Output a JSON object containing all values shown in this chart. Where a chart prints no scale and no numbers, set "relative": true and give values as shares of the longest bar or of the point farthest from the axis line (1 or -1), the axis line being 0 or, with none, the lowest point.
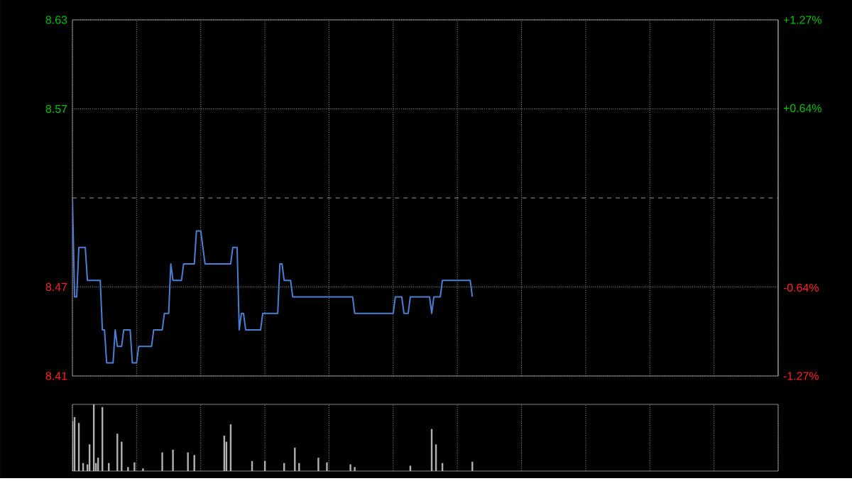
{
  "chart_data": [
    {
      "type": "line",
      "color": "#4a7fd4",
      "ylim": [
        8.412,
        8.628
      ],
      "y2lim": [
        -1.27,
        1.27
      ],
      "grid": true,
      "tick_labels": "y",
      "marker": "none",
      "categories": [
        null,
        null,
        null,
        null,
        null,
        null,
        null,
        null,
        null,
        null,
        null,
        null,
        null,
        null,
        null,
        null,
        null,
        null,
        null,
        null,
        null,
        null,
        null,
        null,
        null,
        null,
        null,
        null,
        null,
        null,
        null,
        null,
        null,
        null,
        null,
        null,
        null,
        null,
        null,
        null,
        null,
        null,
        null,
        null,
        null,
        null,
        null,
        null,
        null,
        null,
        null,
        null,
        null,
        null,
        null,
        null,
        null,
        null,
        null,
        null,
        null,
        null,
        null,
        null,
        null,
        null,
        null,
        null,
        null,
        null,
        null,
        null,
        null,
        null,
        null,
        null,
        null,
        null,
        null,
        null,
        null,
        null,
        null,
        null,
        null,
        null,
        null,
        null,
        null,
        null,
        null,
        null,
        null,
        null,
        null,
        null,
        null,
        null,
        null,
        null,
        null,
        null,
        null,
        null,
        null,
        null,
        null,
        null,
        null,
        null,
        null,
        null,
        null,
        null,
        null,
        null,
        null,
        null,
        null,
        null,
        null,
        null,
        null,
        null,
        null,
        null,
        null,
        null,
        null,
        null,
        null,
        null,
        null,
        null,
        null,
        null,
        null,
        null,
        null,
        null,
        null,
        null,
        null,
        null,
        null,
        null,
        null,
        null,
        null,
        null,
        null,
        null,
        null,
        null,
        null,
        null,
        null,
        null,
        null,
        null,
        null,
        null,
        null,
        null,
        null,
        null,
        null,
        null,
        null,
        null,
        null,
        null,
        null,
        null,
        null,
        null,
        null,
        null,
        null,
        null,
        null,
        null,
        null,
        null,
        null,
        null,
        null,
        null,
        null,
        null,
        null,
        null,
        null,
        null,
        null,
        null,
        null,
        null,
        null,
        null,
        null,
        null,
        null,
        null,
        null,
        null,
        null,
        null,
        null,
        null,
        null,
        null,
        null,
        null,
        null,
        null,
        null,
        null,
        null,
        null,
        null,
        null,
        null,
        null,
        null,
        null,
        null,
        null,
        null,
        null,
        null,
        null,
        null,
        null,
        null,
        null,
        null,
        null,
        null,
        null,
        null,
        null,
        null,
        null,
        null,
        null,
        null,
        null,
        null,
        null,
        null,
        null,
        null,
        null,
        null,
        null,
        null,
        null,
        null,
        null,
        null,
        null,
        null,
        null,
        null,
        null,
        null,
        null,
        null,
        null,
        null,
        null,
        null,
        null,
        null,
        null,
        null,
        null,
        null,
        null,
        null,
        null,
        null,
        null,
        null,
        null,
        null,
        null,
        null,
        null,
        null,
        null,
        null,
        null,
        null,
        null,
        null,
        null,
        null,
        null,
        null,
        null,
        null,
        null,
        null,
        null,
        null,
        null,
        null,
        null,
        null,
        null,
        null,
        null,
        null,
        null,
        null,
        null,
        null,
        null,
        null,
        null,
        null,
        null,
        null,
        null,
        null,
        null,
        null,
        null,
        null
      ],
      "values": [
        8.52,
        8.46,
        8.46,
        8.49,
        8.49,
        8.49,
        8.49,
        8.47,
        8.47,
        8.47,
        8.47,
        8.47,
        8.47,
        8.47,
        8.44,
        8.44,
        8.42,
        8.42,
        8.42,
        8.42,
        8.44,
        8.43,
        8.43,
        8.43,
        8.44,
        8.44,
        8.44,
        8.44,
        8.42,
        8.42,
        8.42,
        8.43,
        8.43,
        8.43,
        8.43,
        8.43,
        8.43,
        8.43,
        8.44,
        8.44,
        8.44,
        8.44,
        8.44,
        8.45,
        8.45,
        8.45,
        8.48,
        8.47,
        8.47,
        8.47,
        8.47,
        8.47,
        8.48,
        8.48,
        8.48,
        8.48,
        8.48,
        8.48,
        8.5,
        8.5,
        8.5,
        8.49,
        8.48,
        8.48,
        8.48,
        8.48,
        8.48,
        8.48,
        8.48,
        8.48,
        8.48,
        8.48,
        8.48,
        8.48,
        8.48,
        8.49,
        8.49,
        8.49,
        8.44,
        8.45,
        8.45,
        8.44,
        8.44,
        8.44,
        8.44,
        8.44,
        8.44,
        8.44,
        8.44,
        8.45,
        8.45,
        8.45,
        8.45,
        8.45,
        8.45,
        8.45,
        8.45,
        8.48,
        8.48,
        8.47,
        8.47,
        8.47,
        8.47,
        8.46,
        8.46,
        8.46,
        8.46,
        8.46,
        8.46,
        8.46,
        8.46,
        8.46,
        8.46,
        8.46,
        8.46,
        8.46,
        8.46,
        8.46,
        8.46,
        8.46,
        8.46,
        8.46,
        8.46,
        8.46,
        8.46,
        8.46,
        8.46,
        8.46,
        8.46,
        8.46,
        8.46,
        8.46,
        8.45,
        8.45,
        8.45,
        8.45,
        8.45,
        8.45,
        8.45,
        8.45,
        8.45,
        8.45,
        8.45,
        8.45,
        8.45,
        8.45,
        8.45,
        8.45,
        8.45,
        8.45,
        8.45,
        8.46,
        8.46,
        8.46,
        8.46,
        8.45,
        8.45,
        8.45,
        8.46,
        8.46,
        8.46,
        8.46,
        8.46,
        8.46,
        8.46,
        8.46,
        8.46,
        8.46,
        8.45,
        8.46,
        8.46,
        8.46,
        8.46,
        8.47,
        8.47,
        8.47,
        8.47,
        8.47,
        8.47,
        8.47,
        8.47,
        8.47,
        8.47,
        8.47,
        8.47,
        8.47,
        8.47,
        8.46,
        null,
        null,
        null,
        null,
        null,
        null,
        null,
        null,
        null,
        null,
        null,
        null,
        null,
        null,
        null,
        null,
        null,
        null,
        null,
        null,
        null,
        null,
        null,
        null,
        null,
        null,
        null,
        null,
        null,
        null,
        null,
        null,
        null,
        null,
        null,
        null,
        null,
        null,
        null,
        null,
        null,
        null,
        null,
        null,
        null,
        null,
        null,
        null,
        null,
        null,
        null,
        null,
        null,
        null,
        null,
        null,
        null,
        null,
        null,
        null,
        null,
        null,
        null,
        null,
        null,
        null,
        null,
        null,
        null,
        null,
        null,
        null,
        null,
        null,
        null,
        null,
        null,
        null,
        null,
        null,
        null,
        null,
        null,
        null,
        null,
        null,
        null,
        null,
        null,
        null,
        null,
        null,
        null,
        null,
        null,
        null,
        null,
        null,
        null,
        null,
        null,
        null,
        null,
        null,
        null,
        null,
        null,
        null,
        null,
        null,
        null,
        null,
        null,
        null,
        null,
        null,
        null,
        null,
        null,
        null,
        null,
        null,
        null,
        null,
        null,
        null,
        null,
        null,
        null,
        null,
        null,
        null,
        null,
        null,
        null,
        null,
        null,
        null,
        null,
        null,
        null,
        null,
        null
      ],
      "yticks": [
        {
          "value": 8.628,
          "label": "8.63"
        },
        {
          "value": 8.574,
          "label": "8.57"
        },
        {
          "value": 8.466,
          "label": "8.47"
        },
        {
          "value": 8.412,
          "label": "8.41"
        }
      ],
      "y2ticks": [
        {
          "value": 1.27,
          "label": "+1.27%"
        },
        {
          "value": 0.64,
          "label": "+0.64%"
        },
        {
          "value": -0.64,
          "label": "-0.64%"
        },
        {
          "value": -1.27,
          "label": "-1.27%"
        }
      ],
      "ref_lines": [
        {
          "axis": "y2",
          "value": 0,
          "line_style": "dashed"
        }
      ]
    },
    {
      "type": "bar",
      "color": "#b0b0b0",
      "relative": true,
      "grid": "x",
      "tick_labels": false,
      "categories": [
        null,
        null,
        null,
        null,
        null,
        null,
        null,
        null,
        null,
        null,
        null,
        null,
        null,
        null,
        null,
        null,
        null,
        null,
        null,
        null,
        null,
        null,
        null,
        null,
        null,
        null,
        null,
        null,
        null,
        null,
        null,
        null,
        null,
        null,
        null,
        null,
        null,
        null,
        null,
        null,
        null,
        null,
        null,
        null,
        null,
        null,
        null,
        null,
        null,
        null,
        null,
        null,
        null,
        null,
        null,
        null,
        null,
        null,
        null,
        null,
        null,
        null,
        null,
        null,
        null,
        null,
        null,
        null,
        null,
        null,
        null,
        null,
        null,
        null,
        null,
        null,
        null,
        null,
        null,
        null,
        null,
        null,
        null,
        null,
        null,
        null,
        null,
        null,
        null,
        null,
        null,
        null,
        null,
        null,
        null,
        null,
        null,
        null,
        null,
        null,
        null,
        null,
        null,
        null,
        null,
        null,
        null,
        null,
        null,
        null,
        null,
        null,
        null,
        null,
        null,
        null,
        null,
        null,
        null,
        null,
        null,
        null,
        null,
        null,
        null,
        null,
        null,
        null,
        null,
        null,
        null,
        null,
        null,
        null,
        null,
        null,
        null,
        null,
        null,
        null,
        null,
        null,
        null,
        null,
        null,
        null,
        null,
        null,
        null,
        null,
        null,
        null,
        null,
        null,
        null,
        null,
        null,
        null,
        null,
        null,
        null,
        null,
        null,
        null,
        null,
        null,
        null,
        null,
        null,
        null,
        null,
        null,
        null,
        null,
        null,
        null,
        null,
        null,
        null,
        null,
        null,
        null,
        null,
        null,
        null,
        null,
        null,
        null,
        null,
        null,
        null,
        null,
        null,
        null,
        null,
        null,
        null,
        null,
        null,
        null,
        null,
        null,
        null,
        null,
        null,
        null,
        null,
        null,
        null,
        null,
        null,
        null,
        null,
        null,
        null,
        null,
        null,
        null,
        null,
        null,
        null,
        null,
        null,
        null,
        null,
        null,
        null,
        null,
        null,
        null,
        null,
        null,
        null,
        null,
        null,
        null,
        null,
        null,
        null,
        null,
        null,
        null,
        null,
        null,
        null,
        null,
        null,
        null,
        null,
        null,
        null,
        null,
        null,
        null,
        null,
        null,
        null,
        null,
        null,
        null,
        null,
        null,
        null,
        null,
        null,
        null,
        null,
        null,
        null,
        null,
        null,
        null,
        null,
        null,
        null,
        null,
        null,
        null,
        null,
        null,
        null,
        null,
        null,
        null,
        null,
        null,
        null,
        null,
        null,
        null,
        null,
        null,
        null,
        null,
        null,
        null,
        null,
        null,
        null,
        null,
        null,
        null,
        null,
        null,
        null,
        null,
        null,
        null,
        null,
        null,
        null,
        null,
        null,
        null,
        null,
        null,
        null,
        null,
        null,
        null,
        null,
        null,
        null,
        null,
        null,
        null,
        null,
        null,
        null,
        null,
        null
      ],
      "values": [
        0.75,
        0.81,
        null,
        0.72,
        null,
        0.12,
        null,
        0.1,
        0.4,
        null,
        1,
        0.12,
        0.2,
        null,
        0.96,
        null,
        null,
        0.12,
        null,
        null,
        null,
        0.56,
        null,
        0.44,
        null,
        null,
        0.06,
        null,
        null,
        0.13,
        null,
        null,
        null,
        0.04,
        null,
        null,
        null,
        null,
        null,
        null,
        null,
        null,
        0.28,
        null,
        null,
        null,
        null,
        0.32,
        null,
        null,
        null,
        null,
        null,
        null,
        0.28,
        null,
        null,
        0.24,
        null,
        null,
        null,
        null,
        null,
        null,
        null,
        null,
        null,
        null,
        null,
        null,
        null,
        0.53,
        0.44,
        null,
        0.7,
        null,
        null,
        null,
        null,
        null,
        null,
        null,
        null,
        null,
        0.15,
        null,
        null,
        null,
        null,
        null,
        0.15,
        null,
        null,
        null,
        null,
        null,
        null,
        null,
        null,
        0.12,
        null,
        null,
        null,
        null,
        0.35,
        null,
        0.12,
        null,
        null,
        null,
        null,
        null,
        null,
        null,
        null,
        0.2,
        null,
        null,
        null,
        0.13,
        null,
        null,
        null,
        null,
        null,
        null,
        null,
        null,
        null,
        null,
        0.1,
        null,
        0.06,
        null,
        null,
        null,
        null,
        null,
        null,
        null,
        null,
        null,
        null,
        null,
        null,
        null,
        null,
        null,
        null,
        null,
        null,
        null,
        null,
        null,
        null,
        null,
        null,
        null,
        0.08,
        null,
        null,
        null,
        null,
        null,
        null,
        null,
        null,
        null,
        0.63,
        null,
        0.4,
        null,
        null,
        0.12,
        null,
        null,
        null,
        null,
        null,
        null,
        null,
        null,
        null,
        null,
        null,
        null,
        null,
        0.14,
        null,
        null,
        null,
        null,
        null,
        null,
        null,
        null,
        null,
        null,
        null,
        null,
        null,
        null,
        null,
        null,
        null,
        null,
        null,
        null,
        null,
        null,
        null,
        null,
        null,
        null,
        null,
        null,
        null,
        null,
        null,
        null,
        null,
        null,
        null,
        null,
        null,
        null,
        null,
        null,
        null,
        null,
        null,
        null,
        null,
        null,
        null,
        null,
        null,
        null,
        null,
        null,
        null,
        null,
        null,
        null,
        null,
        null,
        null,
        null,
        null,
        null,
        null,
        null,
        null,
        null,
        null,
        null,
        null,
        null,
        null,
        null,
        null,
        null,
        null,
        null,
        null,
        null,
        null,
        null,
        null,
        null,
        null,
        null,
        null,
        null,
        null,
        null,
        null,
        null,
        null,
        null,
        null,
        null,
        null,
        null,
        null,
        null,
        null,
        null,
        null,
        null,
        null,
        null,
        null,
        null,
        null,
        null,
        null,
        null,
        null,
        null,
        null,
        null,
        null,
        null,
        null,
        null,
        null,
        null,
        null,
        null,
        null,
        null,
        null,
        null,
        null,
        null,
        null,
        null,
        null,
        null,
        null,
        null,
        null,
        null,
        null,
        null,
        null,
        null,
        null,
        null,
        null
      ]
    }
  ]
}
